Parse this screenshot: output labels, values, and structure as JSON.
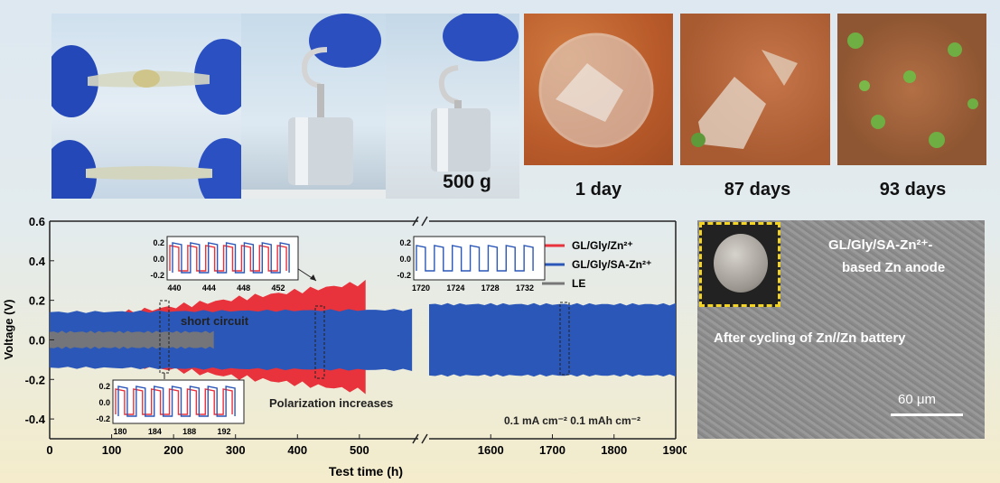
{
  "photos": {
    "weight_label": "500 g",
    "degradation_days": [
      "1 day",
      "87 days",
      "93 days"
    ]
  },
  "chart_data": {
    "type": "line",
    "xlabel": "Test time (h)",
    "ylabel": "Voltage (V)",
    "ylim": [
      -0.5,
      0.6
    ],
    "yticks": [
      "0.6",
      "0.4",
      "0.2",
      "0.0",
      "-0.2",
      "-0.4"
    ],
    "xticks_left": [
      "0",
      "100",
      "200",
      "300",
      "400",
      "500"
    ],
    "xticks_right": [
      "1600",
      "1700",
      "1800",
      "1900"
    ],
    "series": [
      {
        "name": "GL/Gly/Zn²⁺",
        "color": "#e8323c",
        "x_range": [
          0,
          510
        ],
        "amplitude_start": 0.09,
        "amplitude_end": 0.29
      },
      {
        "name": "GL/Gly/SA-Zn²⁺",
        "color": "#2b57b8",
        "x_range": [
          0,
          1900
        ],
        "amplitude_start": 0.14,
        "amplitude_end": 0.18
      },
      {
        "name": "LE",
        "color": "#777777",
        "x_range": [
          0,
          265
        ],
        "amplitude_start": 0.04,
        "amplitude_end": 0.04
      }
    ],
    "annotations": {
      "short_circuit": "short circuit",
      "polarization": "Polarization increases",
      "conditions": "0.1 mA cm⁻²  0.1 mAh cm⁻²"
    },
    "insets": [
      {
        "xticks": [
          "440",
          "444",
          "448",
          "452"
        ],
        "yticks": [
          "0.2",
          "0.0",
          "-0.2"
        ]
      },
      {
        "xticks": [
          "1720",
          "1724",
          "1728",
          "1732"
        ],
        "yticks": [
          "0.2",
          "0.0",
          "-0.2"
        ]
      },
      {
        "xticks": [
          "180",
          "184",
          "188",
          "192"
        ],
        "yticks": [
          "0.2",
          "0.0",
          "-0.2"
        ]
      }
    ]
  },
  "sem": {
    "title_line1": "GL/Gly/SA-Zn²⁺-",
    "title_line2": "based Zn anode",
    "subtitle": "After cycling of Zn//Zn battery",
    "scale_bar": "60 μm"
  }
}
